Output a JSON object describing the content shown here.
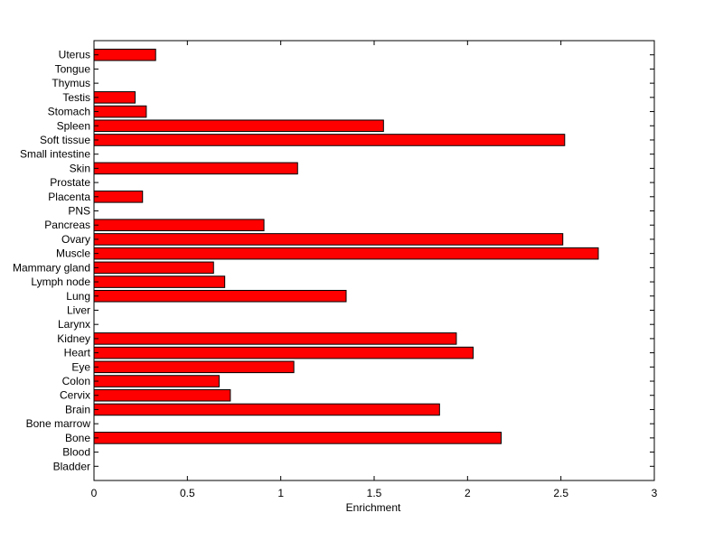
{
  "chart_data": {
    "type": "bar",
    "orientation": "horizontal",
    "title": "",
    "xlabel": "Enrichment",
    "ylabel": "",
    "xlim": [
      0,
      3
    ],
    "xticks": [
      0,
      0.5,
      1,
      1.5,
      2,
      2.5,
      3
    ],
    "xtick_labels": [
      "0",
      "0.5",
      "1",
      "1.5",
      "2",
      "2.5",
      "3"
    ],
    "grid": false,
    "legend": "none",
    "bar_color": "#ff0000",
    "categories": [
      "Bladder",
      "Blood",
      "Bone",
      "Bone marrow",
      "Brain",
      "Cervix",
      "Colon",
      "Eye",
      "Heart",
      "Kidney",
      "Larynx",
      "Liver",
      "Lung",
      "Lymph node",
      "Mammary gland",
      "Muscle",
      "Ovary",
      "Pancreas",
      "PNS",
      "Placenta",
      "Prostate",
      "Skin",
      "Small intestine",
      "Soft tissue",
      "Spleen",
      "Stomach",
      "Testis",
      "Thymus",
      "Tongue",
      "Uterus"
    ],
    "values": [
      0,
      0,
      2.18,
      0,
      1.85,
      0.73,
      0.67,
      1.07,
      2.03,
      1.94,
      0,
      0,
      1.35,
      0.7,
      0.64,
      2.7,
      2.51,
      0.91,
      0,
      0.26,
      0,
      1.09,
      0,
      2.52,
      1.55,
      0.28,
      0.22,
      0,
      0,
      0.33
    ]
  }
}
